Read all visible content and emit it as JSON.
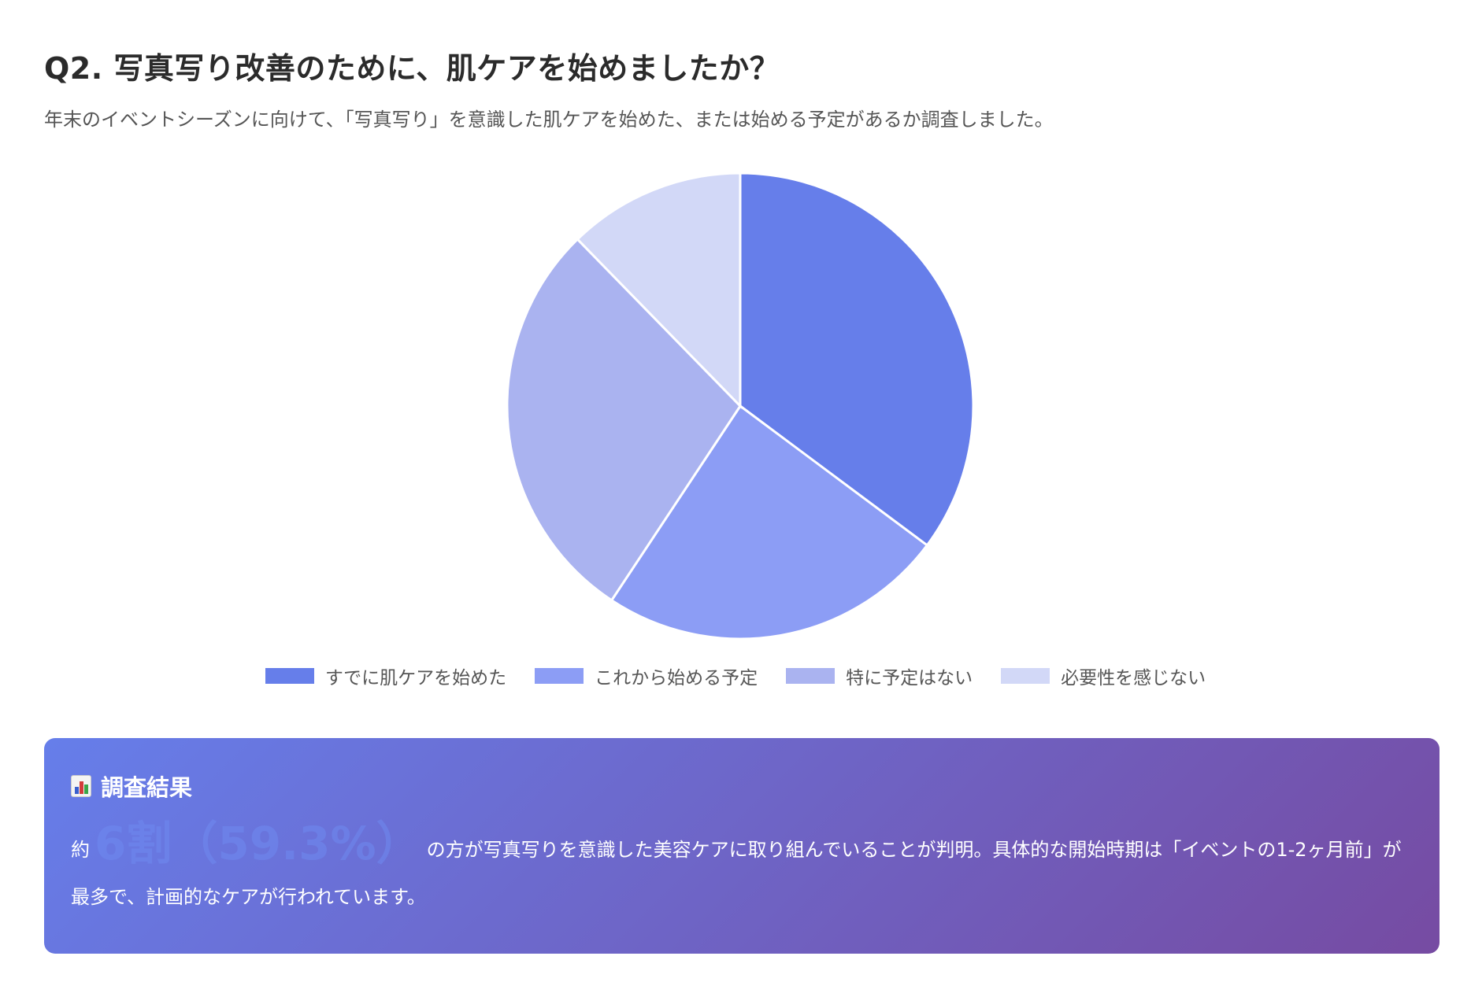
{
  "page": {
    "title": "Q2. 写真写り改善のために、肌ケアを始めましたか？",
    "subtitle": "年末のイベントシーズンに向けて、「写真写り」を意識した肌ケアを始めた、または始める予定があるか調査しました。"
  },
  "chart_data": {
    "type": "pie",
    "title": "",
    "categories": [
      "すでに肌ケアを始めた",
      "これから始める予定",
      "特に予定はない",
      "必要性を感じない"
    ],
    "values": [
      35.2,
      24.1,
      28.4,
      12.3
    ],
    "colors": [
      "#667eea",
      "#8c9df5",
      "#aab3f0",
      "#d2d8f7"
    ],
    "start_angle_deg": 0,
    "direction": "clockwise",
    "legend_position": "bottom",
    "slice_border_color": "#ffffff"
  },
  "result": {
    "icon": "bar-chart-icon",
    "heading": "調査結果",
    "prefix": "約",
    "highlight": "6割（59.3%）",
    "body": "の方が写真写りを意識した美容ケアに取り組んでいることが判明。具体的な開始時期は「イベントの1-2ヶ月前」が最多で、計画的なケアが行われています。"
  }
}
